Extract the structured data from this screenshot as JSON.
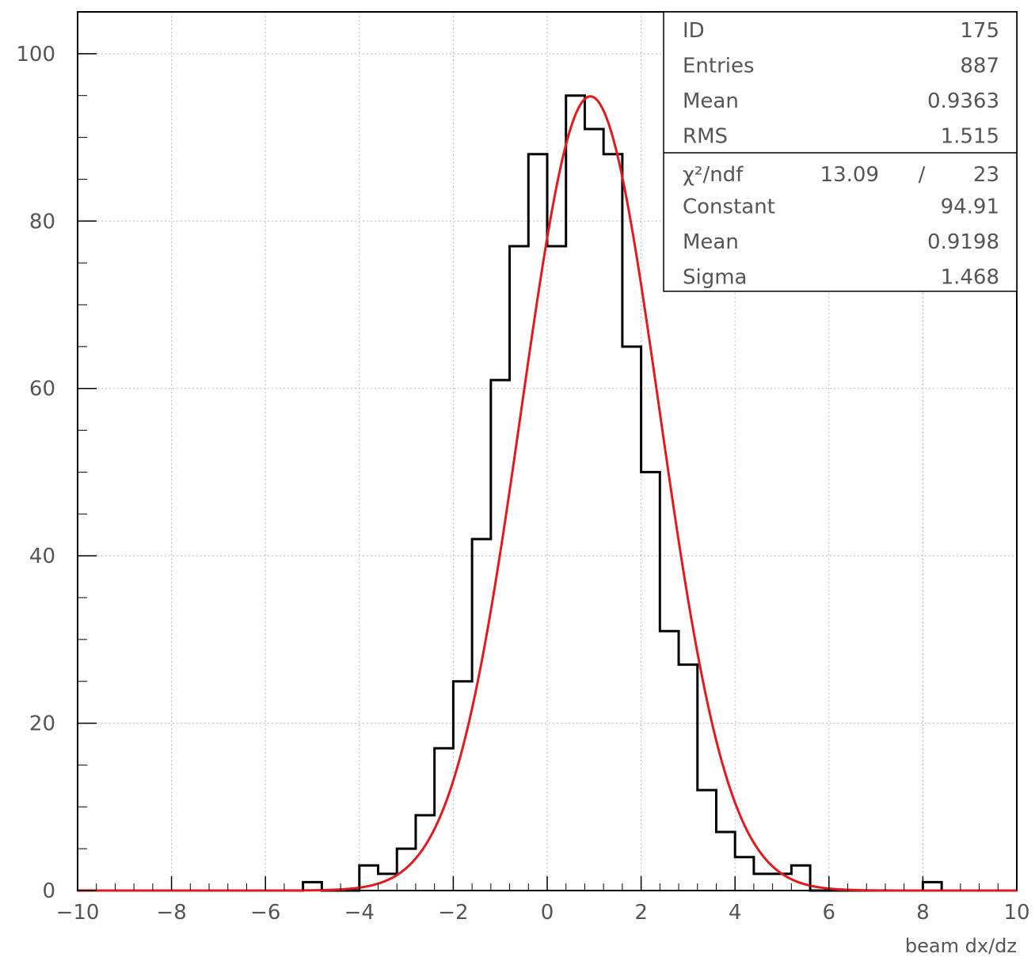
{
  "chart_data": {
    "type": "histogram",
    "xlabel": "beam dx/dz",
    "ylabel": "",
    "xlim": [
      -10,
      10
    ],
    "ylim": [
      0,
      105
    ],
    "grid": true,
    "x_ticks": [
      -10,
      -8,
      -6,
      -4,
      -2,
      0,
      2,
      4,
      6,
      8,
      10
    ],
    "y_ticks": [
      0,
      20,
      40,
      60,
      80,
      100
    ],
    "bin_width": 0.4,
    "bin_edges_start": -10,
    "counts": [
      0,
      0,
      0,
      0,
      0,
      0,
      0,
      0,
      0,
      0,
      0,
      0,
      1,
      0,
      0,
      3,
      2,
      5,
      9,
      17,
      25,
      42,
      61,
      77,
      88,
      77,
      95,
      91,
      88,
      65,
      50,
      31,
      27,
      12,
      7,
      4,
      2,
      2,
      3,
      0,
      0,
      0,
      0,
      0,
      0,
      1,
      0,
      0,
      0,
      0
    ],
    "fit": {
      "function": "gaus",
      "constant": 94.91,
      "mean": 0.9198,
      "sigma": 1.468,
      "color": "#e31a1c"
    },
    "histogram_color": "#000000",
    "stats_box": {
      "placement": "top-right",
      "rows": [
        {
          "label": "ID",
          "value": "175"
        },
        {
          "label": "Entries",
          "value": "887"
        },
        {
          "label": "Mean",
          "value": "0.9363"
        },
        {
          "label": "RMS",
          "value": "1.515"
        }
      ],
      "fit_rows": {
        "chi2_label": "χ²/ndf",
        "chi2": "13.09",
        "slash": "/",
        "ndf": "23",
        "params": [
          {
            "label": "Constant",
            "value": "94.91"
          },
          {
            "label": "Mean",
            "value": "0.9198"
          },
          {
            "label": "Sigma",
            "value": "1.468"
          }
        ]
      }
    }
  }
}
